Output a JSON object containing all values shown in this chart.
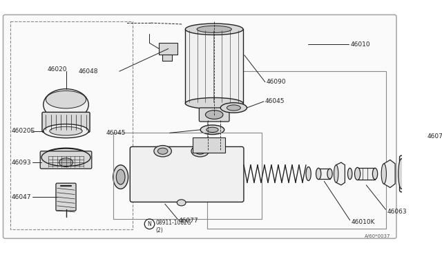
{
  "bg_color": "#ffffff",
  "border_color": "#888888",
  "line_color": "#222222",
  "text_color": "#222222",
  "fill_light": "#f0f0f0",
  "fill_mid": "#d8d8d8",
  "fill_dark": "#b8b8b8",
  "fs": 6.5,
  "diagram_ref": "A/60*0037",
  "part_ref_text": "08911-1082G",
  "part_ref_num": "(2)"
}
